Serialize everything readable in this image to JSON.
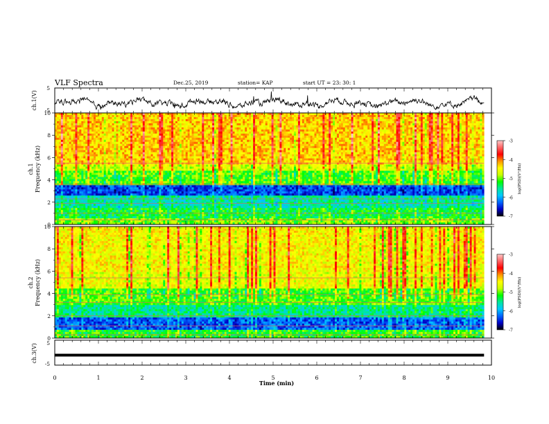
{
  "header": {
    "title": "VLF Spectra",
    "date": "Dec.25, 2019",
    "station": "station= KAP",
    "start": "start  UT =   23: 30: 1"
  },
  "colorbar": {
    "label": "log(PSD)(V²/Hz)",
    "ticks": [
      "-3",
      "-4",
      "-5",
      "-6",
      "-7"
    ],
    "range": [
      -7,
      -3
    ],
    "colors": [
      "#000000",
      "#0000c8",
      "#0064ff",
      "#00c8ff",
      "#00e6a0",
      "#00ff00",
      "#c8ff00",
      "#ffff00",
      "#ff9600",
      "#ff0000",
      "#ff6464",
      "#ffc8c8"
    ]
  },
  "chart_data": [
    {
      "type": "line",
      "name": "ch1-waveform",
      "ylabel": "ch.1(V)",
      "ylim": [
        -5,
        5
      ],
      "yticks": [
        "5",
        "-5"
      ],
      "xlim": [
        0,
        10
      ],
      "x_end": 9.83,
      "baseline": -1.0,
      "amplitude": 2.2,
      "color": "#000000"
    },
    {
      "type": "heatmap",
      "name": "ch1-spectrogram",
      "ylabel": "ch.1\nFrequency (kHz)",
      "ylim": [
        0,
        10
      ],
      "yticks": [
        "0",
        "2",
        "4",
        "6",
        "8",
        "10"
      ],
      "xlim": [
        0,
        10
      ],
      "x_end": 9.83,
      "bands": [
        {
          "from": 0.0,
          "to": 0.6,
          "level": -5.0
        },
        {
          "from": 0.6,
          "to": 1.5,
          "level": -5.3
        },
        {
          "from": 1.5,
          "to": 2.6,
          "level": -5.6
        },
        {
          "from": 2.6,
          "to": 3.5,
          "level": -6.4
        },
        {
          "from": 3.5,
          "to": 4.8,
          "level": -5.1
        },
        {
          "from": 4.8,
          "to": 5.4,
          "level": -4.7
        },
        {
          "from": 5.4,
          "to": 10.0,
          "level": -4.3
        }
      ],
      "lines_khz": [
        0.4,
        1.0,
        1.9,
        2.3,
        3.6,
        5.5
      ]
    },
    {
      "type": "heatmap",
      "name": "ch2-spectrogram",
      "ylabel": "ch.2\nFrequency (kHz)",
      "ylim": [
        0,
        10
      ],
      "yticks": [
        "0",
        "2",
        "4",
        "6",
        "8",
        "10"
      ],
      "xlim": [
        0,
        10
      ],
      "x_end": 9.83,
      "bands": [
        {
          "from": 0.0,
          "to": 0.7,
          "level": -5.2
        },
        {
          "from": 0.7,
          "to": 1.8,
          "level": -6.3
        },
        {
          "from": 1.8,
          "to": 3.0,
          "level": -5.5
        },
        {
          "from": 3.0,
          "to": 4.4,
          "level": -5.1
        },
        {
          "from": 4.4,
          "to": 6.0,
          "level": -4.6
        },
        {
          "from": 6.0,
          "to": 10.0,
          "level": -4.5
        }
      ],
      "lines_khz": [
        0.3,
        1.1,
        2.0,
        3.2,
        3.9,
        5.4
      ]
    },
    {
      "type": "line",
      "name": "ch3-waveform",
      "ylabel": "ch.3(V)",
      "ylim": [
        -5,
        5
      ],
      "yticks": [
        "5",
        "-5"
      ],
      "xlim": [
        0,
        10
      ],
      "x_end": 9.83,
      "baseline": -1.0,
      "amplitude": 0.0,
      "color": "#000000"
    }
  ],
  "xaxis": {
    "label": "Time (min)",
    "ticks": [
      "0",
      "1",
      "2",
      "3",
      "4",
      "5",
      "6",
      "7",
      "8",
      "9",
      "10"
    ],
    "range": [
      0,
      10
    ]
  }
}
